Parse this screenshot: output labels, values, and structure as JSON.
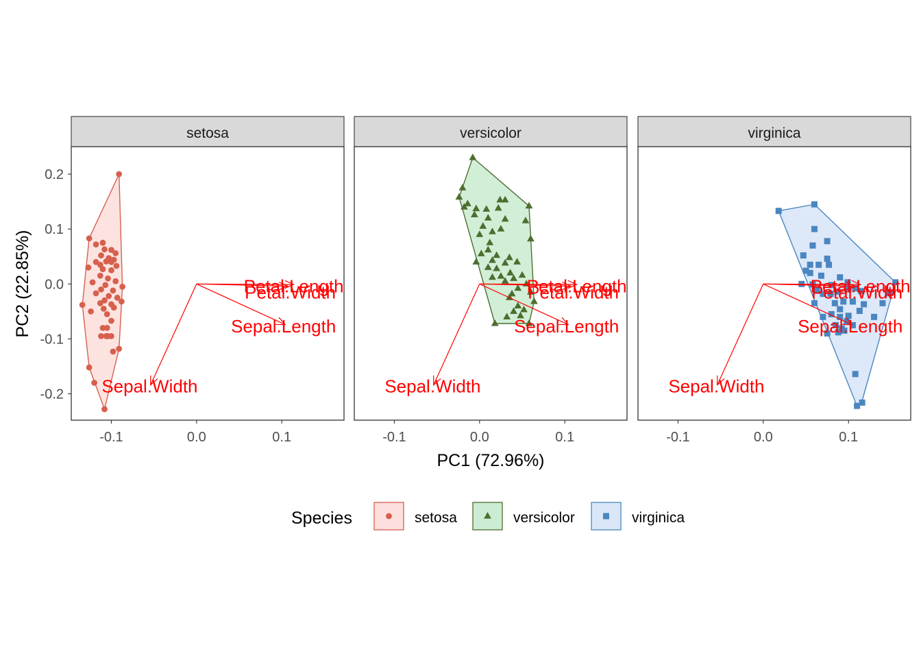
{
  "chart_data": {
    "type": "scatter",
    "title": "",
    "xlabel": "PC1 (72.96%)",
    "ylabel": "PC2 (22.85%)",
    "xlim": [
      -0.147,
      0.173
    ],
    "ylim": [
      -0.248,
      0.25
    ],
    "x_ticks": [
      -0.1,
      0.0,
      0.1
    ],
    "x_tick_labels": [
      "-0.1",
      "0.0",
      "0.1"
    ],
    "y_ticks": [
      0.2,
      0.1,
      0.0,
      -0.1,
      -0.2
    ],
    "y_tick_labels": [
      "0.2",
      "0.1",
      "0.0",
      "-0.1",
      "-0.2"
    ],
    "grid": false,
    "legend": {
      "title": "Species",
      "position": "bottom",
      "entries": [
        "setosa",
        "versicolor",
        "virginica"
      ]
    },
    "colors": {
      "setosa": {
        "point": "#d6604d",
        "fill": "#fde0dd",
        "line": "#d6604d"
      },
      "versicolor": {
        "point": "#4d6e2f",
        "fill": "#ccedd3",
        "line": "#4d6e2f"
      },
      "virginica": {
        "point": "#4a86c0",
        "fill": "#d9e7f8",
        "line": "#4a86c0"
      },
      "loadings": "#ff0000"
    },
    "loadings": [
      {
        "name": "Petal.Length",
        "x": 0.114,
        "y": -0.001,
        "label_x": 0.114,
        "label_y": -0.004
      },
      {
        "name": "Petal.Width",
        "x": 0.107,
        "y": -0.004,
        "label_x": 0.11,
        "label_y": -0.015
      },
      {
        "name": "Sepal.Length",
        "x": 0.104,
        "y": -0.074,
        "label_x": 0.102,
        "label_y": -0.077
      },
      {
        "name": "Sepal.Width",
        "x": -0.054,
        "y": -0.184,
        "label_x": -0.055,
        "label_y": -0.186
      }
    ],
    "panels": [
      {
        "name": "setosa",
        "shape": "circle",
        "hull": [
          [
            -0.091,
            0.2
          ],
          [
            -0.087,
            -0.005
          ],
          [
            -0.091,
            -0.118
          ],
          [
            -0.108,
            -0.228
          ],
          [
            -0.126,
            -0.152
          ],
          [
            -0.134,
            -0.038
          ],
          [
            -0.126,
            0.083
          ]
        ],
        "points": [
          [
            -0.091,
            0.2
          ],
          [
            -0.126,
            0.083
          ],
          [
            -0.11,
            0.075
          ],
          [
            -0.118,
            0.072
          ],
          [
            -0.108,
            0.063
          ],
          [
            -0.1,
            0.062
          ],
          [
            -0.095,
            0.056
          ],
          [
            -0.112,
            0.052
          ],
          [
            -0.103,
            0.047
          ],
          [
            -0.097,
            0.044
          ],
          [
            -0.106,
            0.041
          ],
          [
            -0.118,
            0.04
          ],
          [
            -0.1,
            0.04
          ],
          [
            -0.113,
            0.035
          ],
          [
            -0.094,
            0.033
          ],
          [
            -0.127,
            0.03
          ],
          [
            -0.11,
            0.027
          ],
          [
            -0.1,
            0.025
          ],
          [
            -0.113,
            0.015
          ],
          [
            -0.104,
            0.01
          ],
          [
            -0.095,
            0.005
          ],
          [
            -0.122,
            0.003
          ],
          [
            -0.107,
            -0.002
          ],
          [
            -0.087,
            -0.005
          ],
          [
            -0.112,
            -0.01
          ],
          [
            -0.098,
            -0.012
          ],
          [
            -0.118,
            -0.017
          ],
          [
            -0.103,
            -0.022
          ],
          [
            -0.093,
            -0.025
          ],
          [
            -0.108,
            -0.03
          ],
          [
            -0.088,
            -0.032
          ],
          [
            -0.113,
            -0.035
          ],
          [
            -0.1,
            -0.037
          ],
          [
            -0.134,
            -0.038
          ],
          [
            -0.097,
            -0.043
          ],
          [
            -0.109,
            -0.045
          ],
          [
            -0.124,
            -0.05
          ],
          [
            -0.105,
            -0.055
          ],
          [
            -0.1,
            -0.067
          ],
          [
            -0.11,
            -0.08
          ],
          [
            -0.105,
            -0.08
          ],
          [
            -0.112,
            -0.095
          ],
          [
            -0.106,
            -0.095
          ],
          [
            -0.104,
            -0.095
          ],
          [
            -0.1,
            -0.095
          ],
          [
            -0.091,
            -0.118
          ],
          [
            -0.098,
            -0.123
          ],
          [
            -0.126,
            -0.152
          ],
          [
            -0.12,
            -0.18
          ],
          [
            -0.108,
            -0.228
          ]
        ]
      },
      {
        "name": "versicolor",
        "shape": "triangle",
        "hull": [
          [
            -0.008,
            0.23
          ],
          [
            0.058,
            0.142
          ],
          [
            0.064,
            -0.032
          ],
          [
            0.058,
            -0.072
          ],
          [
            0.018,
            -0.072
          ],
          [
            -0.024,
            0.158
          ]
        ],
        "points": [
          [
            -0.008,
            0.23
          ],
          [
            -0.02,
            0.175
          ],
          [
            -0.024,
            0.158
          ],
          [
            -0.014,
            0.146
          ],
          [
            0.058,
            0.142
          ],
          [
            0.03,
            0.153
          ],
          [
            0.024,
            0.153
          ],
          [
            -0.018,
            0.14
          ],
          [
            -0.004,
            0.137
          ],
          [
            0.008,
            0.136
          ],
          [
            0.022,
            0.138
          ],
          [
            -0.006,
            0.126
          ],
          [
            0.01,
            0.12
          ],
          [
            0.03,
            0.118
          ],
          [
            0.054,
            0.115
          ],
          [
            0.004,
            0.105
          ],
          [
            0.015,
            0.095
          ],
          [
            0.025,
            0.1
          ],
          [
            0.0,
            0.09
          ],
          [
            0.06,
            0.082
          ],
          [
            0.012,
            0.075
          ],
          [
            0.01,
            0.062
          ],
          [
            0.002,
            0.055
          ],
          [
            0.02,
            0.052
          ],
          [
            0.035,
            0.048
          ],
          [
            0.015,
            0.043
          ],
          [
            -0.004,
            0.04
          ],
          [
            0.03,
            0.038
          ],
          [
            0.044,
            0.04
          ],
          [
            0.01,
            0.03
          ],
          [
            0.02,
            0.028
          ],
          [
            0.036,
            0.02
          ],
          [
            0.025,
            0.014
          ],
          [
            0.05,
            0.016
          ],
          [
            0.015,
            0.012
          ],
          [
            0.04,
            0.01
          ],
          [
            0.03,
            0.005
          ],
          [
            0.055,
            0.0
          ],
          [
            0.045,
            -0.008
          ],
          [
            0.038,
            -0.018
          ],
          [
            0.06,
            -0.015
          ],
          [
            0.064,
            -0.032
          ],
          [
            0.035,
            -0.025
          ],
          [
            0.045,
            -0.04
          ],
          [
            0.052,
            -0.047
          ],
          [
            0.04,
            -0.05
          ],
          [
            0.048,
            -0.058
          ],
          [
            0.032,
            -0.06
          ],
          [
            0.058,
            -0.072
          ],
          [
            0.018,
            -0.072
          ]
        ]
      },
      {
        "name": "virginica",
        "shape": "square",
        "hull": [
          [
            0.018,
            0.133
          ],
          [
            0.06,
            0.145
          ],
          [
            0.155,
            0.003
          ],
          [
            0.115,
            -0.218
          ],
          [
            0.11,
            -0.222
          ]
        ],
        "points": [
          [
            0.018,
            0.133
          ],
          [
            0.06,
            0.145
          ],
          [
            0.06,
            0.1
          ],
          [
            0.075,
            0.078
          ],
          [
            0.058,
            0.07
          ],
          [
            0.047,
            0.052
          ],
          [
            0.075,
            0.046
          ],
          [
            0.055,
            0.035
          ],
          [
            0.065,
            0.035
          ],
          [
            0.077,
            0.035
          ],
          [
            0.05,
            0.024
          ],
          [
            0.055,
            0.02
          ],
          [
            0.068,
            0.015
          ],
          [
            0.09,
            0.012
          ],
          [
            0.155,
            0.003
          ],
          [
            0.045,
            0.0
          ],
          [
            0.058,
            -0.001
          ],
          [
            0.08,
            -0.002
          ],
          [
            0.099,
            0.003
          ],
          [
            0.063,
            -0.012
          ],
          [
            0.087,
            -0.014
          ],
          [
            0.1,
            -0.01
          ],
          [
            0.108,
            -0.008
          ],
          [
            0.115,
            -0.013
          ],
          [
            0.148,
            -0.017
          ],
          [
            0.07,
            -0.018
          ],
          [
            0.079,
            -0.018
          ],
          [
            0.084,
            -0.035
          ],
          [
            0.094,
            -0.032
          ],
          [
            0.06,
            -0.035
          ],
          [
            0.105,
            -0.032
          ],
          [
            0.118,
            -0.037
          ],
          [
            0.14,
            -0.035
          ],
          [
            0.09,
            -0.046
          ],
          [
            0.113,
            -0.049
          ],
          [
            0.08,
            -0.055
          ],
          [
            0.1,
            -0.058
          ],
          [
            0.07,
            -0.06
          ],
          [
            0.09,
            -0.06
          ],
          [
            0.13,
            -0.06
          ],
          [
            0.098,
            -0.068
          ],
          [
            0.085,
            -0.075
          ],
          [
            0.105,
            -0.075
          ],
          [
            0.095,
            -0.085
          ],
          [
            0.088,
            -0.088
          ],
          [
            0.075,
            -0.09
          ],
          [
            0.108,
            -0.164
          ],
          [
            0.116,
            -0.216
          ],
          [
            0.11,
            -0.222
          ],
          [
            0.092,
            -0.081
          ]
        ]
      }
    ]
  }
}
